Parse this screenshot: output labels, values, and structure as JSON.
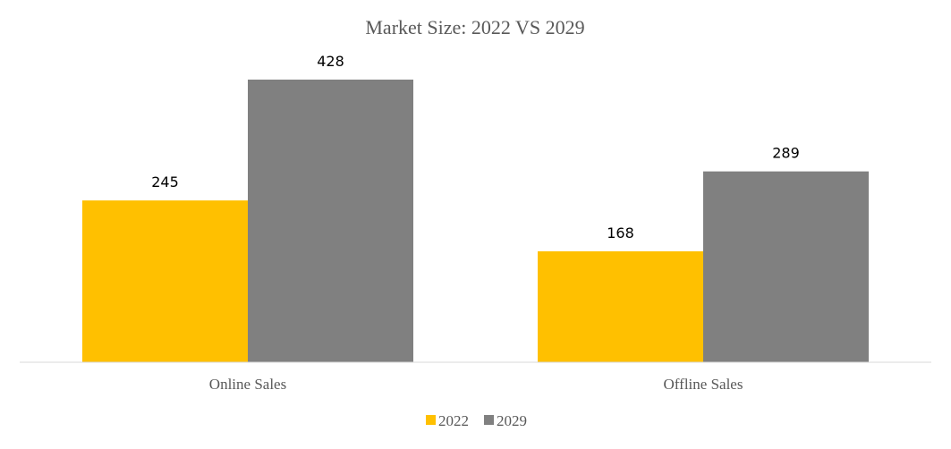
{
  "chart_data": {
    "type": "bar",
    "title": "Market Size:  2022 VS 2029",
    "categories": [
      "Online Sales",
      "Offline Sales"
    ],
    "series": [
      {
        "name": "2022",
        "values": [
          245,
          168
        ],
        "color": "#FFC000"
      },
      {
        "name": "2029",
        "values": [
          428,
          289
        ],
        "color": "#808080"
      }
    ],
    "xlabel": "",
    "ylabel": "",
    "ylim": [
      0,
      428
    ],
    "grid": false,
    "data_labels": true,
    "legend_position": "bottom"
  }
}
